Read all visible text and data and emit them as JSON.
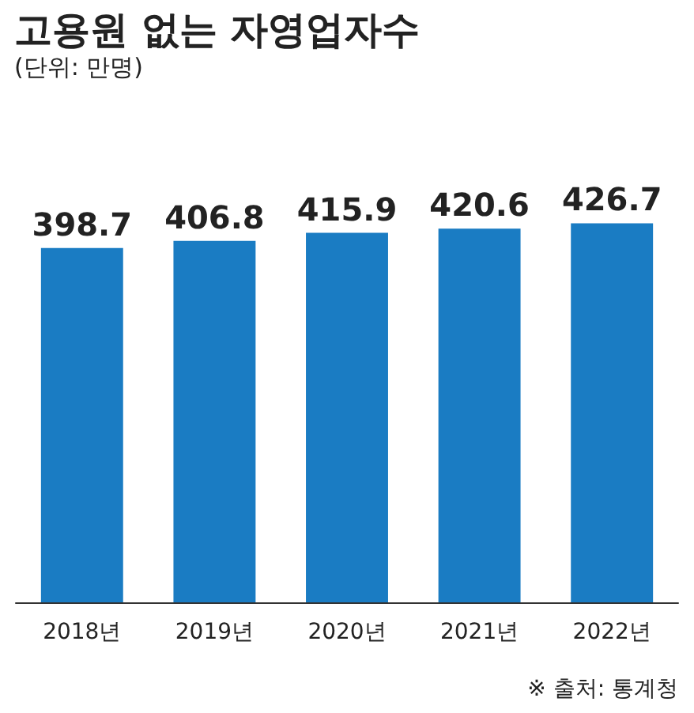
{
  "chart_data": {
    "type": "bar",
    "title": "고용원 없는 자영업자수",
    "subtitle": "(단위: 만명)",
    "annotations": [
      "※ 출처: 통계청"
    ],
    "categories": [
      "2018년",
      "2019년",
      "2020년",
      "2021년",
      "2022년"
    ],
    "values": [
      398.7,
      406.8,
      415.9,
      420.6,
      426.7
    ],
    "color": "#1a7cc3",
    "data_labels": true
  }
}
